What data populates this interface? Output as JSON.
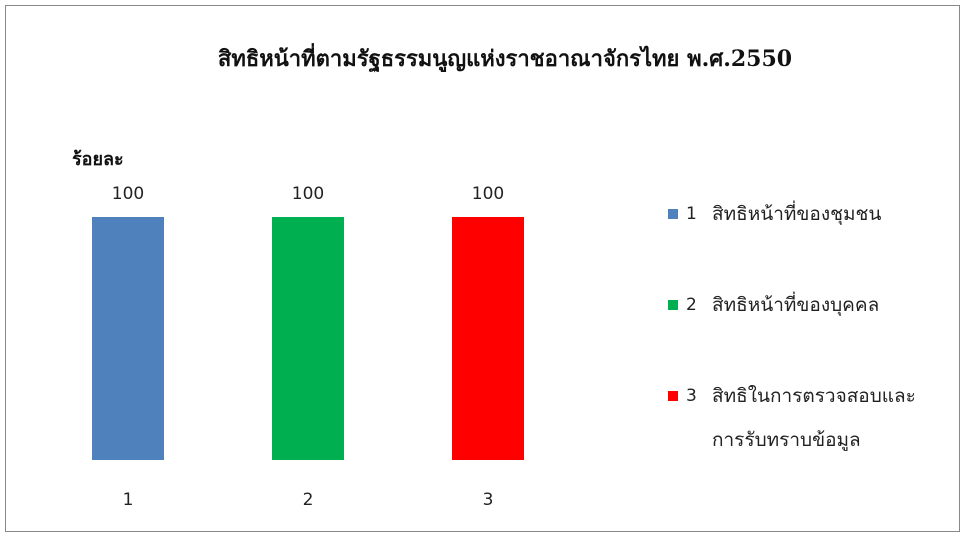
{
  "chart_data": {
    "type": "bar",
    "title": "สิทธิหน้าที่ตามรัฐธรรมนูญแห่งราชอาณาจักรไทย พ.ศ.2550",
    "y_label": "ร้อยละ",
    "categories": [
      "1",
      "2",
      "3"
    ],
    "values": [
      100,
      100,
      100
    ],
    "colors": [
      "#4f81bd",
      "#00b050",
      "#ff0000"
    ],
    "legend_names": [
      "สิทธิหน้าที่ของชุมชน",
      "สิทธิหน้าที่ของบุคคล",
      "สิทธิในการตรวจสอบและการรับทราบข้อมูล"
    ],
    "legend": "right",
    "ylim": [
      0,
      100
    ]
  }
}
